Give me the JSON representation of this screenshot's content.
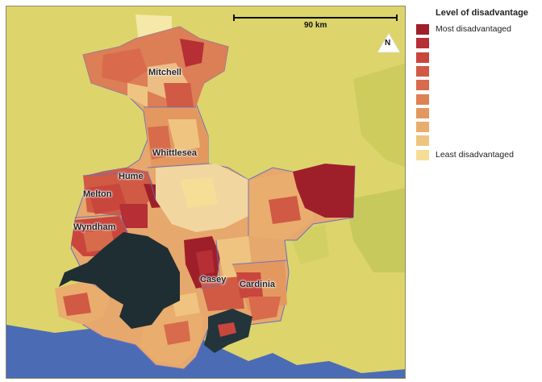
{
  "legend": {
    "title": "Level of disadvantage",
    "top_label": "Most disadvantaged",
    "bottom_label": "Least disadvantaged",
    "colors": [
      "#9e1f2a",
      "#b52f35",
      "#c9463c",
      "#d05a44",
      "#d76b4c",
      "#de8254",
      "#e3985f",
      "#e9ad6e",
      "#efc481",
      "#f6de96"
    ]
  },
  "scale": {
    "label": "90 km"
  },
  "north": {
    "label": "N"
  },
  "areas": {
    "mitchell": "Mitchell",
    "whittlesea": "Whittlesea",
    "hume": "Hume",
    "melton": "Melton",
    "wyndham": "Wyndham",
    "casey": "Casey",
    "cardinia": "Cardinia"
  },
  "colors": {
    "background_land": "#ded66e",
    "water": "#1f2e33",
    "ocean": "#4d6db5"
  }
}
